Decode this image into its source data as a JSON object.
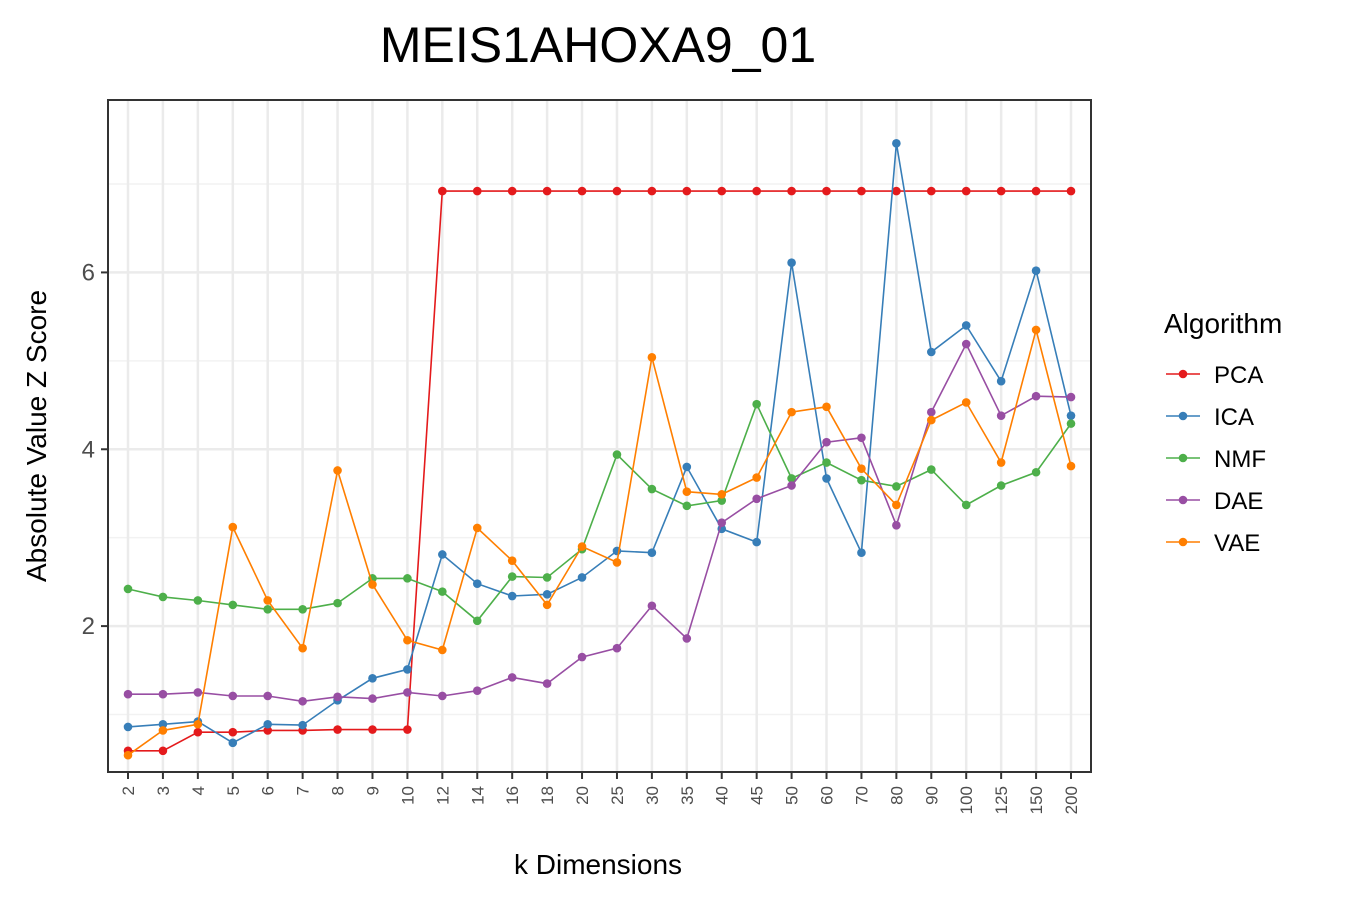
{
  "chart_data": {
    "type": "line",
    "title": "MEIS1AHOXA9_01",
    "xlabel": "k Dimensions",
    "ylabel": "Absolute Value Z Score",
    "x": [
      "2",
      "3",
      "4",
      "5",
      "6",
      "7",
      "8",
      "9",
      "10",
      "12",
      "14",
      "16",
      "18",
      "20",
      "25",
      "30",
      "35",
      "40",
      "45",
      "50",
      "60",
      "70",
      "80",
      "90",
      "100",
      "125",
      "150",
      "200"
    ],
    "yticks": [
      "2",
      "4",
      "6"
    ],
    "ylim": [
      0.35,
      7.95
    ],
    "grid": true,
    "legend": {
      "title": "Algorithm",
      "placement": "right"
    },
    "series": [
      {
        "name": "PCA",
        "color": "#e41a1c",
        "values": [
          0.59,
          0.59,
          0.8,
          0.8,
          0.82,
          0.82,
          0.83,
          0.83,
          0.83,
          6.92,
          6.92,
          6.92,
          6.92,
          6.92,
          6.92,
          6.92,
          6.92,
          6.92,
          6.92,
          6.92,
          6.92,
          6.92,
          6.92,
          6.92,
          6.92,
          6.92,
          6.92,
          6.92
        ]
      },
      {
        "name": "ICA",
        "color": "#377eb8",
        "values": [
          0.86,
          0.89,
          0.92,
          0.68,
          0.89,
          0.88,
          1.16,
          1.41,
          1.51,
          2.81,
          2.48,
          2.34,
          2.36,
          2.55,
          2.85,
          2.83,
          3.8,
          3.1,
          2.95,
          6.11,
          3.67,
          2.83,
          7.46,
          5.1,
          5.4,
          4.77,
          6.02,
          4.38
        ]
      },
      {
        "name": "NMF",
        "color": "#4daf4a",
        "values": [
          2.42,
          2.33,
          2.29,
          2.24,
          2.19,
          2.19,
          2.26,
          2.54,
          2.54,
          2.39,
          2.06,
          2.56,
          2.55,
          2.87,
          3.94,
          3.55,
          3.36,
          3.42,
          4.51,
          3.67,
          3.85,
          3.65,
          3.58,
          3.77,
          3.37,
          3.59,
          3.74,
          4.29
        ]
      },
      {
        "name": "DAE",
        "color": "#984ea3",
        "values": [
          1.23,
          1.23,
          1.25,
          1.21,
          1.21,
          1.15,
          1.2,
          1.18,
          1.25,
          1.21,
          1.27,
          1.42,
          1.35,
          1.65,
          1.75,
          2.23,
          1.86,
          3.17,
          3.44,
          3.59,
          4.08,
          4.13,
          3.14,
          4.42,
          5.19,
          4.38,
          4.6,
          4.59
        ]
      },
      {
        "name": "VAE",
        "color": "#ff7f00",
        "values": [
          0.54,
          0.82,
          0.89,
          3.12,
          2.29,
          1.75,
          3.76,
          2.47,
          1.84,
          1.73,
          3.11,
          2.74,
          2.24,
          2.9,
          2.72,
          5.04,
          3.52,
          3.49,
          3.68,
          4.42,
          4.48,
          3.78,
          3.37,
          4.33,
          4.53,
          3.85,
          5.35,
          3.81
        ]
      }
    ]
  }
}
